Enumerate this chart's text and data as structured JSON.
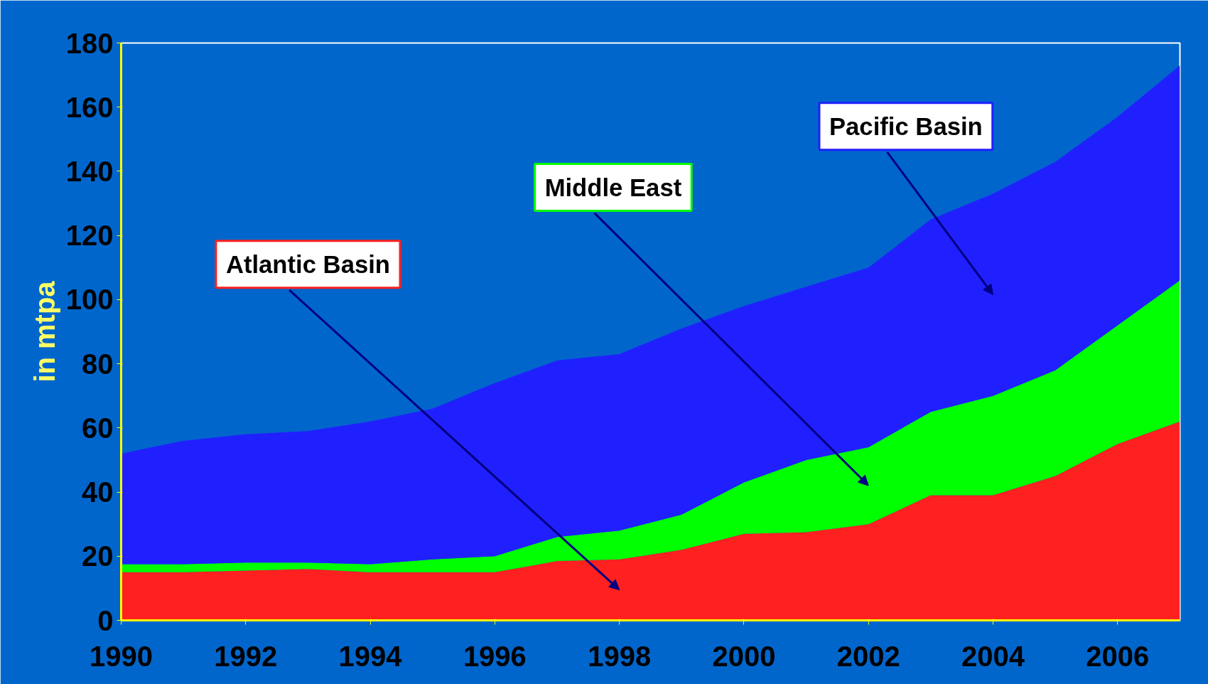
{
  "chart_data": {
    "type": "area",
    "stacked": true,
    "ylabel": "in mtpa",
    "x": [
      1990,
      1991,
      1992,
      1993,
      1994,
      1995,
      1996,
      1997,
      1998,
      1999,
      2000,
      2001,
      2002,
      2003,
      2004,
      2005,
      2006,
      2007
    ],
    "series": [
      {
        "name": "Atlantic Basin",
        "color": "#ff2020",
        "values": [
          15,
          15,
          15.5,
          16,
          15,
          15,
          15,
          18.5,
          19,
          22,
          27,
          27.5,
          30,
          39,
          39,
          45,
          55,
          62
        ]
      },
      {
        "name": "Middle East",
        "color": "#00ff00",
        "values": [
          2.5,
          2.5,
          2.5,
          2,
          2.5,
          4,
          5,
          7.5,
          9,
          11,
          16,
          22.5,
          24,
          26,
          31,
          33,
          37,
          44
        ]
      },
      {
        "name": "Pacific Basin",
        "color": "#2020ff",
        "values": [
          34.5,
          38.5,
          40,
          41,
          44.5,
          47,
          54,
          55,
          55,
          58,
          55,
          54,
          56,
          60,
          63,
          65,
          65,
          67
        ]
      }
    ],
    "xlim": [
      1990,
      2007
    ],
    "ylim": [
      0,
      180
    ],
    "xticks": [
      1990,
      1992,
      1994,
      1996,
      1998,
      2000,
      2002,
      2004,
      2006
    ],
    "yticks": [
      0,
      20,
      40,
      60,
      80,
      100,
      120,
      140,
      160,
      180
    ],
    "grid": false
  }
}
